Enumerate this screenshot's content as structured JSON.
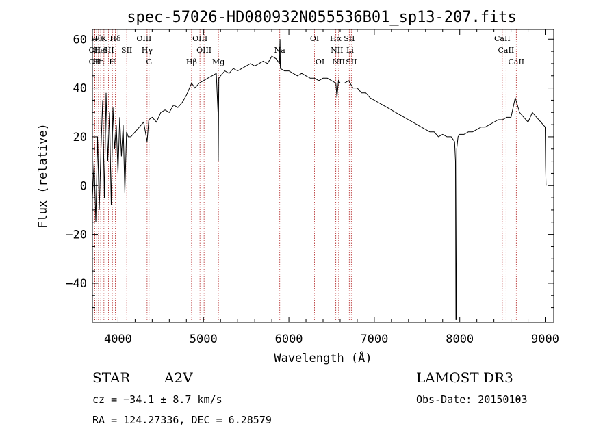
{
  "chart_data": {
    "type": "line",
    "title": "spec-57026-HD080932N055536B01_sp13-207.fits",
    "xlabel": "Wavelength (Å)",
    "ylabel": "Flux (relative)",
    "xlim": [
      3700,
      9100
    ],
    "ylim": [
      -56,
      64
    ],
    "x_ticks": [
      4000,
      5000,
      6000,
      7000,
      8000,
      9000
    ],
    "y_ticks": [
      -40,
      -20,
      0,
      20,
      40,
      60
    ],
    "series": [
      {
        "name": "spectrum",
        "x": [
          3700,
          3720,
          3740,
          3760,
          3780,
          3800,
          3820,
          3840,
          3860,
          3880,
          3900,
          3920,
          3940,
          3960,
          3980,
          4000,
          4020,
          4040,
          4060,
          4080,
          4100,
          4120,
          4150,
          4200,
          4250,
          4300,
          4340,
          4360,
          4400,
          4450,
          4500,
          4550,
          4600,
          4650,
          4700,
          4750,
          4800,
          4861,
          4900,
          4950,
          5000,
          5050,
          5100,
          5150,
          5170,
          5173,
          5180,
          5200,
          5250,
          5300,
          5350,
          5400,
          5450,
          5500,
          5550,
          5600,
          5650,
          5700,
          5750,
          5800,
          5850,
          5890,
          5896,
          5900,
          5950,
          6000,
          6050,
          6100,
          6150,
          6200,
          6250,
          6300,
          6350,
          6400,
          6450,
          6500,
          6550,
          6563,
          6580,
          6600,
          6650,
          6700,
          6750,
          6800,
          6850,
          6900,
          6950,
          7000,
          7050,
          7100,
          7150,
          7200,
          7250,
          7300,
          7350,
          7400,
          7450,
          7500,
          7550,
          7600,
          7650,
          7700,
          7750,
          7800,
          7850,
          7900,
          7940,
          7950,
          7955,
          7960,
          7965,
          7980,
          8000,
          8050,
          8100,
          8150,
          8200,
          8250,
          8300,
          8350,
          8400,
          8450,
          8500,
          8550,
          8600,
          8650,
          8700,
          8750,
          8800,
          8850,
          8900,
          8950,
          9000,
          9005,
          9010
        ],
        "y": [
          -5,
          10,
          -15,
          20,
          -10,
          15,
          35,
          -5,
          38,
          10,
          30,
          -8,
          32,
          15,
          25,
          5,
          28,
          12,
          25,
          -3,
          22,
          20,
          20,
          22,
          24,
          26,
          18,
          27,
          28,
          26,
          30,
          31,
          30,
          33,
          32,
          34,
          37,
          42,
          40,
          42,
          43,
          44,
          45,
          46,
          30,
          10,
          44,
          45,
          47,
          46,
          48,
          47,
          48,
          49,
          50,
          49,
          50,
          51,
          50,
          53,
          52,
          50,
          60,
          48,
          47,
          47,
          46,
          45,
          46,
          45,
          44,
          44,
          43,
          44,
          44,
          43,
          42,
          36,
          43,
          42,
          42,
          43,
          40,
          40,
          38,
          38,
          36,
          35,
          34,
          33,
          32,
          31,
          30,
          29,
          28,
          27,
          26,
          25,
          24,
          23,
          22,
          22,
          20,
          21,
          20,
          20,
          18,
          10,
          -55,
          -55,
          15,
          20,
          21,
          21,
          22,
          22,
          23,
          24,
          24,
          25,
          26,
          27,
          27,
          28,
          28,
          36,
          30,
          28,
          26,
          30,
          28,
          26,
          24,
          8,
          0
        ]
      }
    ],
    "lines": [
      {
        "wave": 3727,
        "label": "OII",
        "row": 2
      },
      {
        "wave": 3728,
        "label": "OII",
        "row": 3
      },
      {
        "wave": 3750,
        "label": "Hθ",
        "row": 1
      },
      {
        "wave": 3771,
        "label": "Hη",
        "row": 3
      },
      {
        "wave": 3797,
        "label": "HeI",
        "row": 2
      },
      {
        "wave": 3835,
        "label": "K",
        "row": 1
      },
      {
        "wave": 3889,
        "label": "SII",
        "row": 2
      },
      {
        "wave": 3934,
        "label": "H",
        "row": 3
      },
      {
        "wave": 3968,
        "label": "Hδ",
        "row": 1
      },
      {
        "wave": 4102,
        "label": "SII",
        "row": 2
      },
      {
        "wave": 4304,
        "label": "OIII",
        "row": 1
      },
      {
        "wave": 4340,
        "label": "Hγ",
        "row": 2
      },
      {
        "wave": 4363,
        "label": "G",
        "row": 3
      },
      {
        "wave": 4861,
        "label": "Hβ",
        "row": 3
      },
      {
        "wave": 4959,
        "label": "OIII",
        "row": 1
      },
      {
        "wave": 5007,
        "label": "OIII",
        "row": 2
      },
      {
        "wave": 5175,
        "label": "Mg",
        "row": 3
      },
      {
        "wave": 5893,
        "label": "Na",
        "row": 2
      },
      {
        "wave": 6300,
        "label": "OI",
        "row": 1
      },
      {
        "wave": 6364,
        "label": "OI",
        "row": 3
      },
      {
        "wave": 6548,
        "label": "Hα",
        "row": 1
      },
      {
        "wave": 6563,
        "label": "NII",
        "row": 2
      },
      {
        "wave": 6583,
        "label": "NII",
        "row": 3
      },
      {
        "wave": 6707,
        "label": "SII",
        "row": 1
      },
      {
        "wave": 6716,
        "label": "Li",
        "row": 2
      },
      {
        "wave": 6731,
        "label": "SII",
        "row": 3
      },
      {
        "wave": 8498,
        "label": "CaII",
        "row": 1
      },
      {
        "wave": 8542,
        "label": "CaII",
        "row": 2
      },
      {
        "wave": 8662,
        "label": "CaII",
        "row": 3
      }
    ]
  },
  "info": {
    "object_class": "STAR",
    "subclass": "A2V",
    "survey": "LAMOST DR3",
    "cz": "cz = −34.1 ± 8.7 km/s",
    "obs_date": "Obs-Date: 20150103",
    "radec": "RA = 124.27336, DEC =    6.28579"
  },
  "colors": {
    "spectrum": "#000000",
    "line_marker": "#b22222"
  }
}
